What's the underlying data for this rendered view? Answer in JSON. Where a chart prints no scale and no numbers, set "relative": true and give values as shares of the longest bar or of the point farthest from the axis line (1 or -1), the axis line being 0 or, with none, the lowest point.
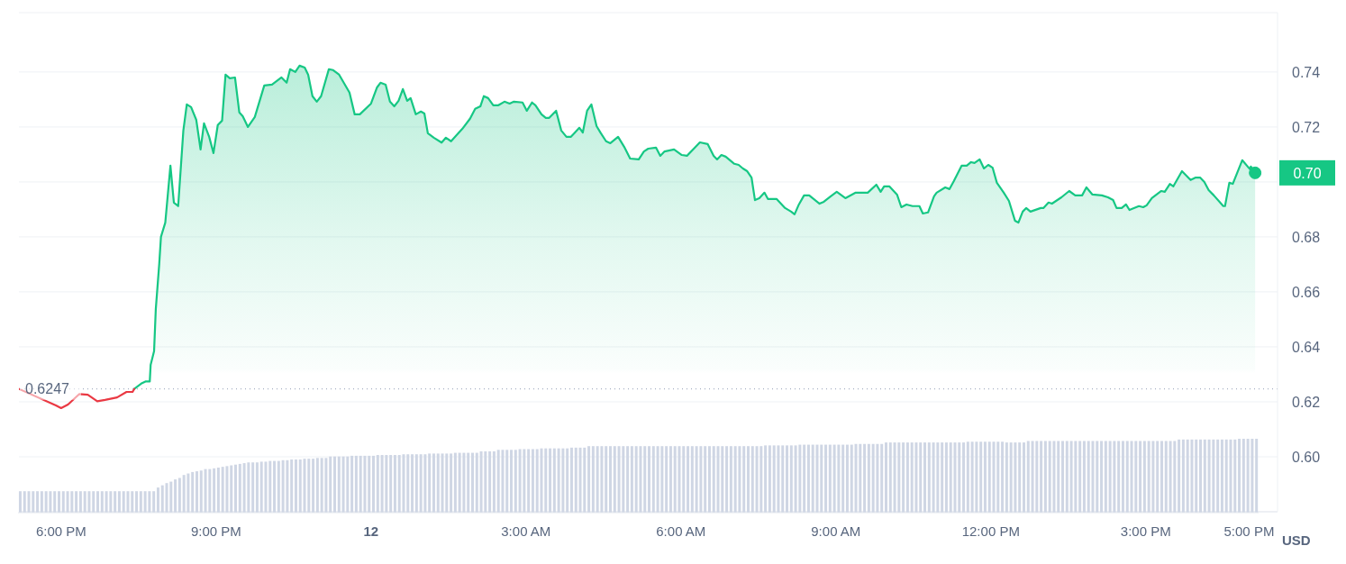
{
  "chart_data": [
    {
      "type": "area",
      "ylabel": "USD",
      "grid": "y",
      "xlim": [
        "--01-11T17:11",
        "--01-12T17:33"
      ],
      "ylim": [
        0.58,
        0.7616
      ],
      "xticks": [
        {
          "value": "--01-11T18:00",
          "label": "6:00 PM"
        },
        {
          "value": "--01-11T21:00",
          "label": "9:00 PM"
        },
        {
          "value": "--01-12T00:00",
          "label": "12"
        },
        {
          "value": "--01-12T03:00",
          "label": "3:00 AM"
        },
        {
          "value": "--01-12T06:00",
          "label": "6:00 AM"
        },
        {
          "value": "--01-12T09:00",
          "label": "9:00 AM"
        },
        {
          "value": "--01-12T12:00",
          "label": "12:00 PM"
        },
        {
          "value": "--01-12T15:00",
          "label": "3:00 PM"
        },
        {
          "value": "--01-12T17:00",
          "label": "5:00 PM"
        }
      ],
      "yticks": [
        {
          "value": 0.6,
          "label": "0.60"
        },
        0.62,
        0.64,
        0.66,
        0.68,
        {
          "value": 0.7,
          "label": null
        },
        0.72,
        0.74
      ],
      "ref_lines": [
        {
          "axis": "y",
          "value": 0.6247,
          "label": "0.6247",
          "line_style": "dotted",
          "color": "#a6b0c3"
        }
      ],
      "annotations": [
        {
          "text": "0.70",
          "x": "--01-12T17:07",
          "y": 0.7033
        }
      ],
      "series": [
        {
          "type": "line",
          "color": "#ea3943",
          "x": [
            "--01-11T17:11",
            "--01-11T17:54",
            "--01-11T18:00",
            "--01-11T18:08",
            "--01-11T18:21",
            "--01-11T18:31",
            "--01-11T18:42",
            "--01-11T18:51",
            "--01-11T19:05",
            "--01-11T19:16",
            "--01-11T19:23",
            "--01-11T19:25"
          ],
          "values": [
            0.6247,
            0.6187,
            0.6177,
            0.619,
            0.6228,
            0.6226,
            0.6202,
            0.6207,
            0.6216,
            0.6236,
            0.6236,
            0.6247
          ]
        },
        {
          "color": "#16c784",
          "x": [
            "--01-11T19:25",
            "--01-11T19:33",
            "--01-11T19:38",
            "--01-11T19:43",
            "--01-11T19:44",
            "--01-11T19:48",
            "--01-11T19:50",
            "--01-11T19:54",
            "--01-11T19:56",
            "--01-11T20:01",
            "--01-11T20:07",
            "--01-11T20:11",
            "--01-11T20:16",
            "--01-11T20:22",
            "--01-11T20:26",
            "--01-11T20:31",
            "--01-11T20:37",
            "--01-11T20:42",
            "--01-11T20:46",
            "--01-11T20:52",
            "--01-11T20:57",
            "--01-11T21:02",
            "--01-11T21:07",
            "--01-11T21:11",
            "--01-11T21:16",
            "--01-11T21:22",
            "--01-11T21:27",
            "--01-11T21:31",
            "--01-11T21:37",
            "--01-11T21:45",
            "--01-11T21:56",
            "--01-11T22:05",
            "--01-11T22:16",
            "--01-11T22:22",
            "--01-11T22:26",
            "--01-11T22:32",
            "--01-11T22:37",
            "--01-11T22:43",
            "--01-11T22:47",
            "--01-11T22:52",
            "--01-11T22:57",
            "--01-11T23:02",
            "--01-11T23:11",
            "--01-11T23:16",
            "--01-11T23:23",
            "--01-11T23:35",
            "--01-11T23:41",
            "--01-11T23:47",
            "--01-12T00:00",
            "--01-12T00:07",
            "--01-12T00:11",
            "--01-12T00:17",
            "--01-12T00:22",
            "--01-12T00:27",
            "--01-12T00:32",
            "--01-12T00:37",
            "--01-12T00:42",
            "--01-12T00:46",
            "--01-12T00:52",
            "--01-12T00:58",
            "--01-12T01:02",
            "--01-12T01:06",
            "--01-12T01:13",
            "--01-12T01:22",
            "--01-12T01:27",
            "--01-12T01:33",
            "--01-12T01:46",
            "--01-12T01:55",
            "--01-12T02:01",
            "--01-12T02:07",
            "--01-12T02:11",
            "--01-12T02:16",
            "--01-12T02:22",
            "--01-12T02:28",
            "--01-12T02:35",
            "--01-12T02:41",
            "--01-12T02:46",
            "--01-12T02:56",
            "--01-12T03:01",
            "--01-12T03:07",
            "--01-12T03:11",
            "--01-12T03:18",
            "--01-12T03:23",
            "--01-12T03:27",
            "--01-12T03:35",
            "--01-12T03:41",
            "--01-12T03:47",
            "--01-12T03:52",
            "--01-12T03:56",
            "--01-12T04:02",
            "--01-12T04:06",
            "--01-12T04:11",
            "--01-12T04:16",
            "--01-12T04:22",
            "--01-12T04:27",
            "--01-12T04:33",
            "--01-12T04:38",
            "--01-12T04:47",
            "--01-12T04:54",
            "--01-12T05:01",
            "--01-12T05:11",
            "--01-12T05:17",
            "--01-12T05:22",
            "--01-12T05:31",
            "--01-12T05:36",
            "--01-12T05:41",
            "--01-12T05:52",
            "--01-12T06:01",
            "--01-12T06:07",
            "--01-12T06:15",
            "--01-12T06:22",
            "--01-12T06:31",
            "--01-12T06:38",
            "--01-12T06:42",
            "--01-12T06:47",
            "--01-12T06:52",
            "--01-12T07:02",
            "--01-12T07:07",
            "--01-12T07:12",
            "--01-12T07:17",
            "--01-12T07:22",
            "--01-12T07:26",
            "--01-12T07:31",
            "--01-12T07:37",
            "--01-12T07:41",
            "--01-12T07:51",
            "--01-12T08:01",
            "--01-12T08:08",
            "--01-12T08:12",
            "--01-12T08:17",
            "--01-12T08:23",
            "--01-12T08:29",
            "--01-12T08:41",
            "--01-12T08:46",
            "--01-12T08:54",
            "--01-12T09:01",
            "--01-12T09:11",
            "--01-12T09:23",
            "--01-12T09:37",
            "--01-12T09:47",
            "--01-12T09:52",
            "--01-12T09:56",
            "--01-12T10:02",
            "--01-12T10:11",
            "--01-12T10:16",
            "--01-12T10:22",
            "--01-12T10:29",
            "--01-12T10:37",
            "--01-12T10:41",
            "--01-12T10:47",
            "--01-12T10:54",
            "--01-12T10:57",
            "--01-12T11:07",
            "--01-12T11:12",
            "--01-12T11:17",
            "--01-12T11:26",
            "--01-12T11:32",
            "--01-12T11:37",
            "--01-12T11:41",
            "--01-12T11:47",
            "--01-12T11:52",
            "--01-12T11:57",
            "--01-12T12:02",
            "--01-12T12:07",
            "--01-12T12:15",
            "--01-12T12:21",
            "--01-12T12:28",
            "--01-12T12:32",
            "--01-12T12:37",
            "--01-12T12:41",
            "--01-12T12:46",
            "--01-12T12:58",
            "--01-12T13:01",
            "--01-12T13:07",
            "--01-12T13:11",
            "--01-12T13:22",
            "--01-12T13:31",
            "--01-12T13:38",
            "--01-12T13:46",
            "--01-12T13:51",
            "--01-12T13:58",
            "--01-12T14:09",
            "--01-12T14:16",
            "--01-12T14:22",
            "--01-12T14:26",
            "--01-12T14:32",
            "--01-12T14:37",
            "--01-12T14:41",
            "--01-12T14:52",
            "--01-12T14:57",
            "--01-12T15:01",
            "--01-12T15:07",
            "--01-12T15:18",
            "--01-12T15:22",
            "--01-12T15:28",
            "--01-12T15:32",
            "--01-12T15:42",
            "--01-12T15:52",
            "--01-12T15:58",
            "--01-12T16:03",
            "--01-12T16:08",
            "--01-12T16:13",
            "--01-12T16:19",
            "--01-12T16:30",
            "--01-12T16:32",
            "--01-12T16:37",
            "--01-12T16:41",
            "--01-12T16:52",
            "--01-12T17:01",
            "--01-12T17:02",
            "--01-12T17:07"
          ],
          "values": [
            0.6247,
            0.6266,
            0.6274,
            0.6274,
            0.6334,
            0.6384,
            0.6538,
            0.6702,
            0.68,
            0.6852,
            0.7059,
            0.6925,
            0.6912,
            0.7187,
            0.7282,
            0.7272,
            0.7226,
            0.7118,
            0.7213,
            0.7164,
            0.7105,
            0.7207,
            0.7223,
            0.739,
            0.7377,
            0.738,
            0.7253,
            0.7239,
            0.72,
            0.7236,
            0.7351,
            0.7354,
            0.738,
            0.7361,
            0.741,
            0.74,
            0.7423,
            0.7416,
            0.739,
            0.7312,
            0.7292,
            0.7312,
            0.741,
            0.7407,
            0.739,
            0.7325,
            0.7246,
            0.7246,
            0.7285,
            0.7344,
            0.7361,
            0.7354,
            0.7292,
            0.7275,
            0.7295,
            0.7338,
            0.7295,
            0.7305,
            0.7246,
            0.7256,
            0.7249,
            0.7177,
            0.7161,
            0.7143,
            0.7161,
            0.7148,
            0.7193,
            0.723,
            0.7266,
            0.7275,
            0.7312,
            0.7305,
            0.7279,
            0.7279,
            0.7292,
            0.7285,
            0.7292,
            0.7289,
            0.7259,
            0.7289,
            0.7279,
            0.7246,
            0.7233,
            0.7233,
            0.7259,
            0.7187,
            0.7164,
            0.7164,
            0.7177,
            0.7197,
            0.718,
            0.7259,
            0.7282,
            0.7203,
            0.7177,
            0.7148,
            0.7141,
            0.7164,
            0.7128,
            0.7085,
            0.7082,
            0.7111,
            0.7121,
            0.7125,
            0.7095,
            0.7111,
            0.7118,
            0.7098,
            0.7095,
            0.7121,
            0.7144,
            0.7138,
            0.7095,
            0.7082,
            0.7098,
            0.7092,
            0.7066,
            0.7062,
            0.7049,
            0.7039,
            0.7016,
            0.6934,
            0.6941,
            0.6961,
            0.6938,
            0.6938,
            0.6905,
            0.6892,
            0.6882,
            0.6918,
            0.6951,
            0.6951,
            0.6921,
            0.6928,
            0.6948,
            0.6964,
            0.6941,
            0.6961,
            0.6961,
            0.699,
            0.6964,
            0.6984,
            0.6984,
            0.6954,
            0.6908,
            0.6918,
            0.6912,
            0.6912,
            0.6885,
            0.6889,
            0.6948,
            0.6961,
            0.698,
            0.6974,
            0.7003,
            0.7059,
            0.7059,
            0.7072,
            0.7069,
            0.7082,
            0.7049,
            0.7062,
            0.7052,
            0.6997,
            0.6961,
            0.6931,
            0.6859,
            0.6852,
            0.6892,
            0.6905,
            0.6892,
            0.6905,
            0.6905,
            0.6925,
            0.6921,
            0.6944,
            0.6967,
            0.6951,
            0.6951,
            0.698,
            0.6954,
            0.6951,
            0.6944,
            0.6934,
            0.6905,
            0.6905,
            0.6918,
            0.6898,
            0.6912,
            0.6908,
            0.6915,
            0.6941,
            0.6967,
            0.6964,
            0.6993,
            0.6984,
            0.7039,
            0.7007,
            0.7016,
            0.7016,
            0.7,
            0.697,
            0.6951,
            0.6912,
            0.6912,
            0.6997,
            0.6993,
            0.7079,
            0.7046,
            0.7056,
            0.7033
          ]
        }
      ]
    },
    {
      "type": "bar",
      "relative": true,
      "color": "#cfd6e4",
      "categories": [
        null,
        null,
        null,
        null,
        null,
        null,
        null,
        null,
        null,
        null,
        null,
        null,
        null,
        null,
        null,
        null,
        null,
        null,
        null,
        null,
        null,
        null,
        null,
        null,
        null,
        null,
        null,
        null,
        null,
        null,
        null,
        null,
        null,
        null,
        null,
        null,
        null,
        null,
        null,
        null,
        null,
        null,
        null,
        null,
        null,
        null,
        null,
        null,
        null,
        null,
        null,
        null,
        null,
        null,
        null,
        null,
        null,
        null,
        null,
        null,
        null,
        null,
        null,
        null,
        null,
        null,
        null,
        null,
        null,
        null,
        null,
        null,
        null,
        null,
        null,
        null,
        null,
        null,
        null,
        null,
        null,
        null,
        null,
        null,
        null,
        null,
        null,
        null,
        null,
        null,
        null,
        null,
        null,
        null,
        null,
        null,
        null,
        null,
        null,
        null,
        null,
        null,
        null,
        null,
        null,
        null,
        null,
        null,
        null,
        null,
        null,
        null,
        null,
        null,
        null,
        null,
        null,
        null,
        null,
        null,
        null,
        null,
        null,
        null,
        null,
        null,
        null,
        null,
        null,
        null,
        null,
        null,
        null,
        null,
        null,
        null,
        null,
        null,
        null,
        null,
        null,
        null,
        null,
        null,
        null,
        null,
        null,
        null,
        null,
        null,
        null,
        null,
        null,
        null,
        null,
        null,
        null,
        null,
        null,
        null,
        null,
        null,
        null,
        null,
        null,
        null,
        null,
        null,
        null,
        null,
        null,
        null,
        null,
        null,
        null,
        null,
        null,
        null,
        null,
        null,
        null,
        null,
        null,
        null,
        null,
        null,
        null,
        null,
        null,
        null,
        null,
        null,
        null,
        null,
        null,
        null,
        null,
        null,
        null,
        null,
        null,
        null,
        null,
        null,
        null,
        null,
        null,
        null,
        null,
        null,
        null,
        null,
        null,
        null,
        null,
        null,
        null,
        null,
        null,
        null,
        null,
        null,
        null,
        null,
        null,
        null,
        null,
        null,
        null,
        null,
        null,
        null,
        null,
        null,
        null,
        null,
        null,
        null,
        null,
        null,
        null,
        null,
        null,
        null,
        null,
        null,
        null,
        null,
        null,
        null,
        null,
        null,
        null,
        null,
        null,
        null,
        null,
        null,
        null,
        null,
        null,
        null,
        null,
        null,
        null,
        null,
        null,
        null,
        null,
        null,
        null,
        null,
        null,
        null,
        null,
        null,
        null,
        null,
        null,
        null,
        null,
        null,
        null,
        null,
        null,
        null,
        null,
        null
      ],
      "values": [
        0.29,
        0.29,
        0.29,
        0.29,
        0.29,
        0.29,
        0.29,
        0.29,
        0.29,
        0.29,
        0.29,
        0.29,
        0.29,
        0.29,
        0.29,
        0.29,
        0.29,
        0.29,
        0.29,
        0.29,
        0.29,
        0.29,
        0.29,
        0.29,
        0.29,
        0.29,
        0.29,
        0.29,
        0.29,
        0.29,
        0.29,
        0.29,
        0.34,
        0.37,
        0.4,
        0.42,
        0.45,
        0.47,
        0.51,
        0.53,
        0.55,
        0.56,
        0.57,
        0.59,
        0.59,
        0.6,
        0.61,
        0.62,
        0.63,
        0.64,
        0.65,
        0.66,
        0.67,
        0.68,
        0.68,
        0.68,
        0.69,
        0.69,
        0.7,
        0.7,
        0.7,
        0.71,
        0.71,
        0.72,
        0.72,
        0.72,
        0.73,
        0.73,
        0.73,
        0.74,
        0.74,
        0.74,
        0.76,
        0.76,
        0.76,
        0.76,
        0.76,
        0.77,
        0.77,
        0.77,
        0.77,
        0.77,
        0.77,
        0.78,
        0.78,
        0.78,
        0.78,
        0.78,
        0.78,
        0.79,
        0.79,
        0.79,
        0.79,
        0.79,
        0.79,
        0.8,
        0.8,
        0.8,
        0.8,
        0.8,
        0.8,
        0.81,
        0.81,
        0.81,
        0.81,
        0.81,
        0.81,
        0.83,
        0.83,
        0.83,
        0.83,
        0.85,
        0.85,
        0.85,
        0.85,
        0.85,
        0.86,
        0.86,
        0.86,
        0.86,
        0.86,
        0.87,
        0.87,
        0.87,
        0.87,
        0.87,
        0.87,
        0.87,
        0.88,
        0.88,
        0.88,
        0.88,
        0.9,
        0.9,
        0.9,
        0.9,
        0.9,
        0.9,
        0.9,
        0.9,
        0.9,
        0.9,
        0.9,
        0.9,
        0.9,
        0.9,
        0.9,
        0.9,
        0.9,
        0.9,
        0.9,
        0.9,
        0.9,
        0.9,
        0.9,
        0.9,
        0.9,
        0.9,
        0.9,
        0.9,
        0.9,
        0.9,
        0.9,
        0.9,
        0.9,
        0.9,
        0.9,
        0.9,
        0.9,
        0.9,
        0.9,
        0.9,
        0.9,
        0.91,
        0.91,
        0.91,
        0.91,
        0.91,
        0.91,
        0.91,
        0.91,
        0.92,
        0.92,
        0.92,
        0.92,
        0.92,
        0.92,
        0.92,
        0.92,
        0.92,
        0.92,
        0.92,
        0.92,
        0.92,
        0.93,
        0.93,
        0.93,
        0.93,
        0.93,
        0.93,
        0.93,
        0.95,
        0.95,
        0.95,
        0.95,
        0.95,
        0.95,
        0.95,
        0.95,
        0.95,
        0.95,
        0.95,
        0.95,
        0.95,
        0.95,
        0.95,
        0.95,
        0.95,
        0.95,
        0.95,
        0.96,
        0.96,
        0.96,
        0.96,
        0.96,
        0.96,
        0.96,
        0.96,
        0.96,
        0.95,
        0.95,
        0.95,
        0.95,
        0.95,
        0.97,
        0.97,
        0.97,
        0.97,
        0.97,
        0.97,
        0.97,
        0.97,
        0.97,
        0.97,
        0.97,
        0.97,
        0.97,
        0.97,
        0.97,
        0.97,
        0.97,
        0.97,
        0.97,
        0.97,
        0.97,
        0.97,
        0.97,
        0.97,
        0.97,
        0.97,
        0.97,
        0.97,
        0.97,
        0.97,
        0.97,
        0.97,
        0.97,
        0.97,
        0.97,
        0.99,
        0.99,
        0.99,
        0.99,
        0.99,
        0.99,
        0.99,
        0.99,
        0.99,
        0.99,
        0.99,
        0.99,
        0.99,
        0.99,
        1,
        1,
        1,
        1,
        1
      ]
    }
  ]
}
